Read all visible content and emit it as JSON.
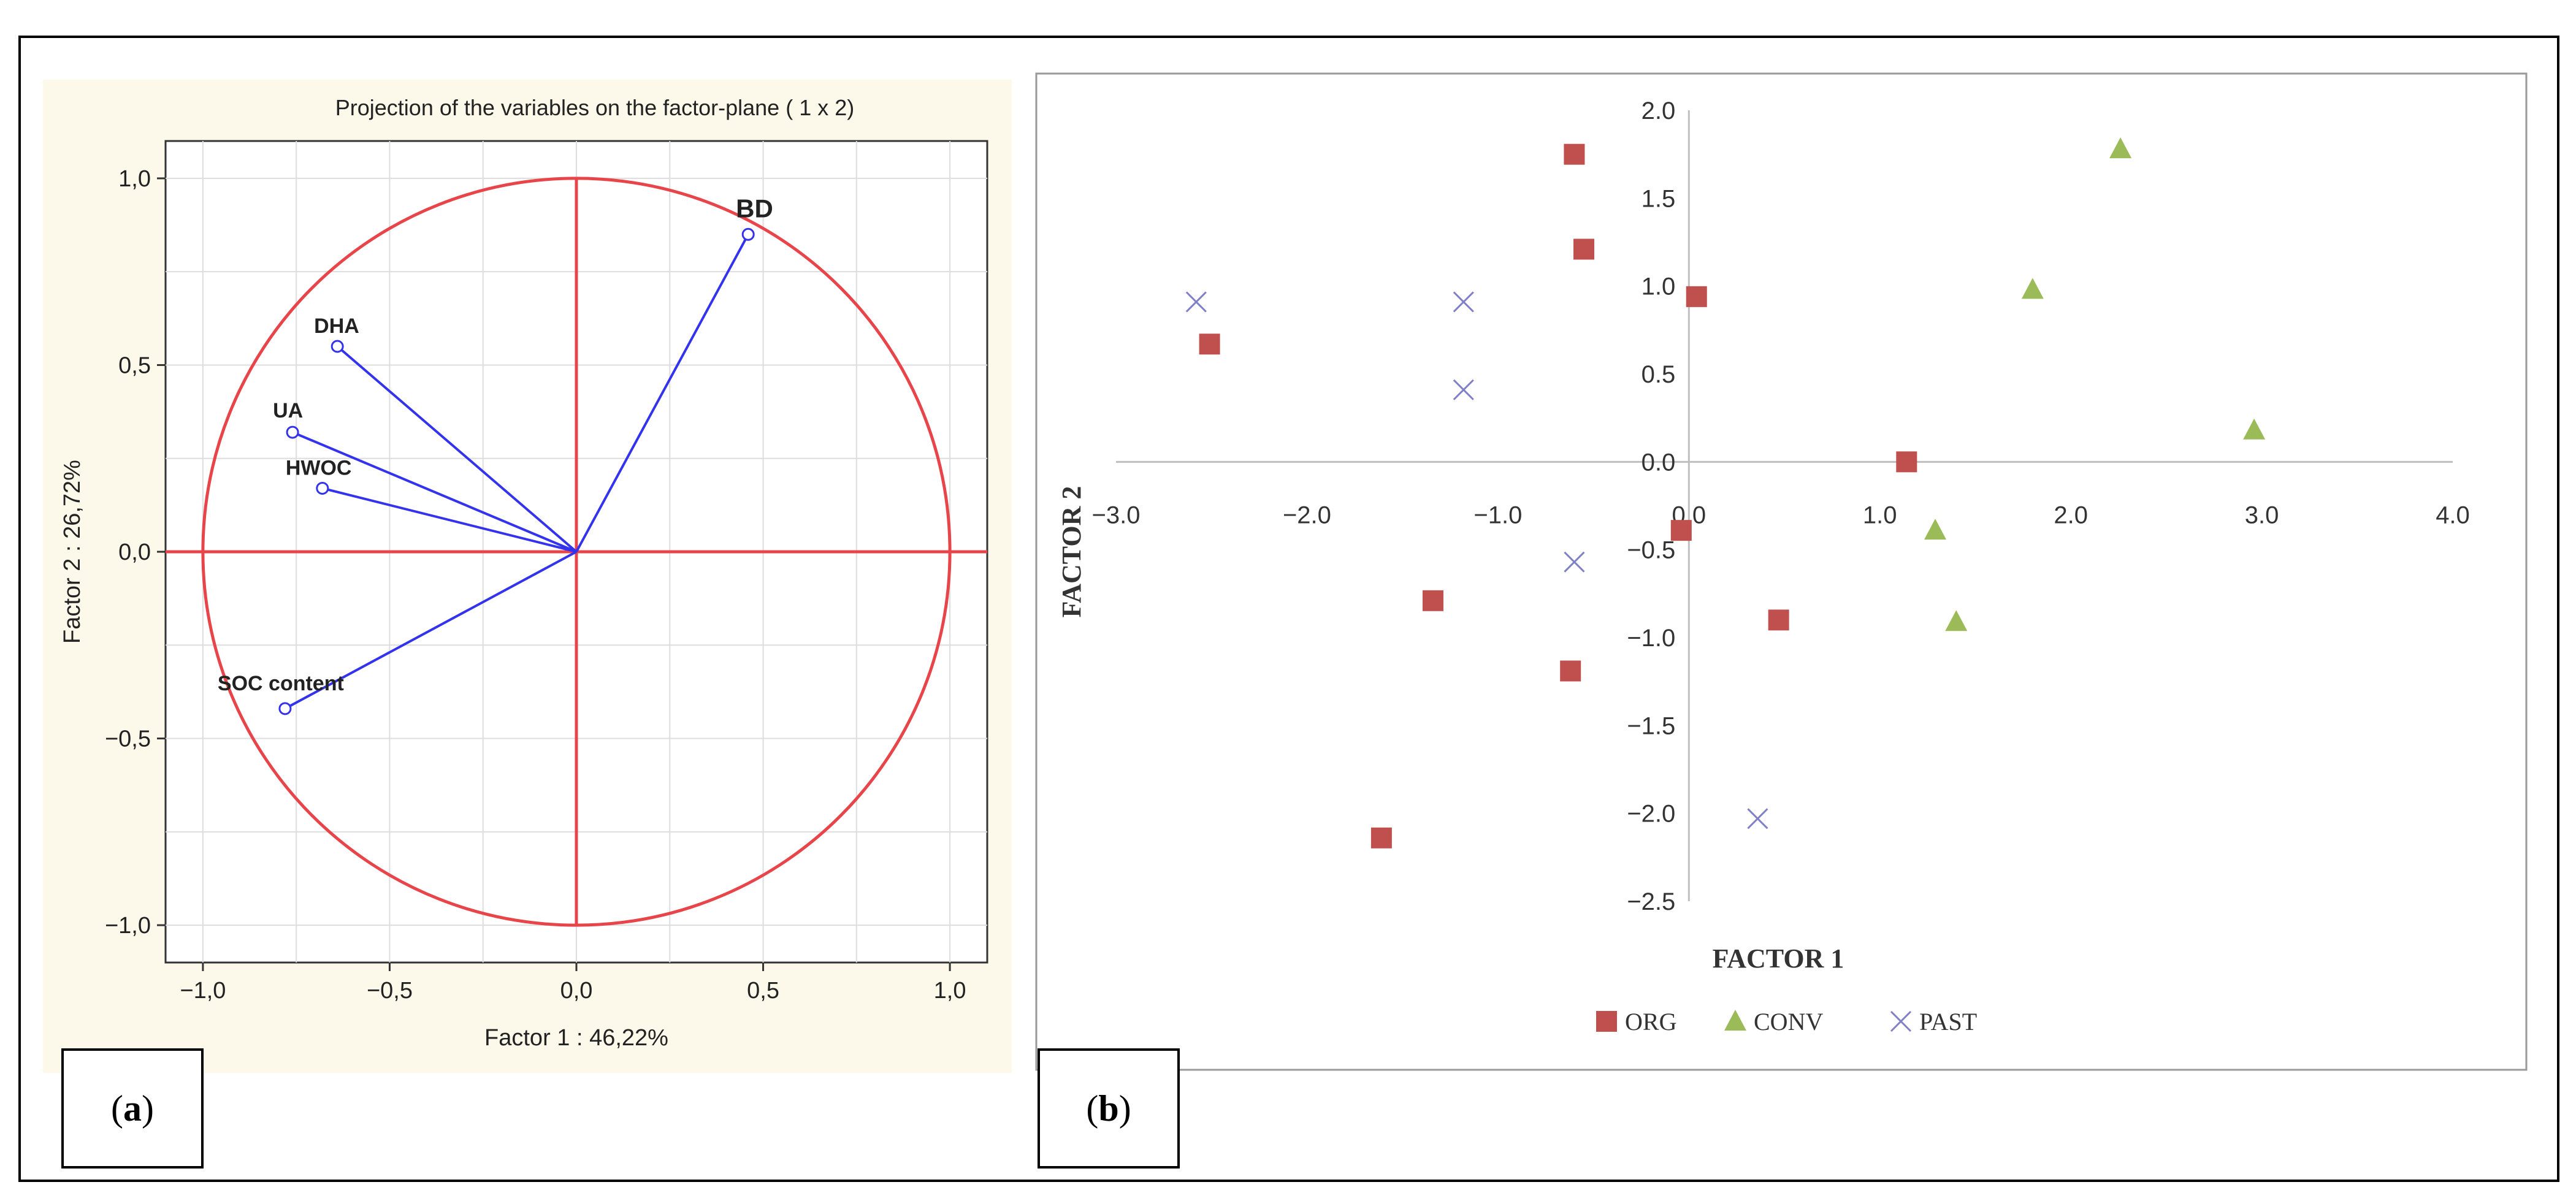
{
  "panels": [
    {
      "id": "a",
      "label_open": "(",
      "label_letter": "a",
      "label_close": ")"
    },
    {
      "id": "b",
      "label_open": "(",
      "label_letter": "b",
      "label_close": ")"
    }
  ],
  "chart_data": [
    {
      "type": "scatter",
      "title": "Projection of the variables on the factor-plane ( 1 x 2)",
      "xlabel": "Factor 1 : 46,22%",
      "ylabel": "Factor 2 : 26,72%",
      "xlim": [
        -1.1,
        1.1
      ],
      "ylim": [
        -1.1,
        1.1
      ],
      "xticks": [
        "-1,0",
        "-0,5",
        "0,0",
        "0,5",
        "1,0"
      ],
      "yticks": [
        "-1,0",
        "-0,5",
        "0,0",
        "0,5",
        "1,0"
      ],
      "grid": true,
      "unit_circle": true,
      "series": [
        {
          "points": [
            {
              "label": "BD",
              "x": 0.46,
              "y": 0.85
            },
            {
              "label": "DHA",
              "x": -0.64,
              "y": 0.55
            },
            {
              "label": "UA",
              "x": -0.76,
              "y": 0.32
            },
            {
              "label": "HWOC",
              "x": -0.68,
              "y": 0.17
            },
            {
              "label": "SOC content",
              "x": -0.78,
              "y": -0.42
            }
          ]
        }
      ],
      "colors": {
        "circle": "#e8454a",
        "vectors": "#3333ee",
        "background": "#fdf9ea"
      }
    },
    {
      "type": "scatter",
      "title": "",
      "xlabel": "FACTOR 1",
      "ylabel": "FACTOR 2",
      "xlim": [
        -3.0,
        4.0
      ],
      "ylim": [
        -2.5,
        2.0
      ],
      "xticks": [
        "−3.0",
        "−2.0",
        "−1.0",
        "0.0",
        "1.0",
        "2.0",
        "3.0",
        "4.0"
      ],
      "yticks": [
        "−2.5",
        "−2.0",
        "−1.5",
        "−1.0",
        "−0.5",
        "0.0",
        "0.5",
        "1.0",
        "1.5",
        "2.0"
      ],
      "legend_position": "bottom",
      "series": [
        {
          "name": "ORG",
          "marker": "square",
          "color": "#c0504d",
          "points": [
            [
              -0.6,
              1.75
            ],
            [
              -0.55,
              1.21
            ],
            [
              0.04,
              0.94
            ],
            [
              -2.51,
              0.67
            ],
            [
              1.14,
              0.0
            ],
            [
              -0.04,
              -0.39
            ],
            [
              -1.34,
              -0.79
            ],
            [
              0.47,
              -0.9
            ],
            [
              -0.62,
              -1.19
            ],
            [
              -1.61,
              -2.14
            ]
          ]
        },
        {
          "name": "CONV",
          "marker": "triangle",
          "color": "#9bbb59",
          "points": [
            [
              2.26,
              1.78
            ],
            [
              1.8,
              0.98
            ],
            [
              2.96,
              0.18
            ],
            [
              1.29,
              -0.39
            ],
            [
              1.4,
              -0.91
            ]
          ]
        },
        {
          "name": "PAST",
          "marker": "x",
          "color": "#8080c8",
          "points": [
            [
              -2.58,
              0.91
            ],
            [
              -1.18,
              0.91
            ],
            [
              -1.18,
              0.41
            ],
            [
              -0.6,
              -0.57
            ],
            [
              0.36,
              -2.03
            ]
          ]
        }
      ]
    }
  ]
}
